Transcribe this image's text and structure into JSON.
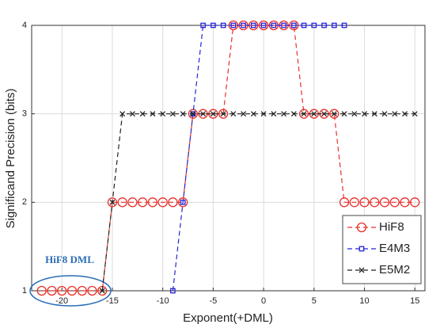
{
  "chart_data": {
    "type": "line",
    "x_label": "Exponent(+DML)",
    "y_label": "Significand Precision (bits)",
    "annotation": "HiF8 DML",
    "xlim": [
      -23,
      16
    ],
    "ylim": [
      1,
      4
    ],
    "xticks": [
      -20,
      -15,
      -10,
      -5,
      0,
      5,
      10,
      15
    ],
    "yticks": [
      1,
      2,
      3,
      4
    ],
    "grid": true,
    "legend": "lower right",
    "series": [
      {
        "name": "HiF8",
        "color": "#e8302a",
        "marker": "o",
        "x": [
          -22,
          -21,
          -20,
          -19,
          -18,
          -17,
          -16,
          -15,
          -14,
          -13,
          -12,
          -11,
          -10,
          -9,
          -8,
          -7,
          -6,
          -5,
          -4,
          -3,
          -2,
          -1,
          0,
          1,
          2,
          3,
          4,
          5,
          6,
          7,
          8,
          9,
          10,
          11,
          12,
          13,
          14,
          15
        ],
        "values": [
          1,
          1,
          1,
          1,
          1,
          1,
          1,
          2,
          2,
          2,
          2,
          2,
          2,
          2,
          2,
          3,
          3,
          3,
          3,
          4,
          4,
          4,
          4,
          4,
          4,
          4,
          3,
          3,
          3,
          3,
          2,
          2,
          2,
          2,
          2,
          2,
          2,
          2
        ]
      },
      {
        "name": "E4M3",
        "color": "#2424d6",
        "marker": "s",
        "x": [
          -9,
          -8,
          -7,
          -6,
          -5,
          -4,
          -3,
          -2,
          -1,
          0,
          1,
          2,
          3,
          4,
          5,
          6,
          7,
          8
        ],
        "values": [
          1,
          2,
          3,
          4,
          4,
          4,
          4,
          4,
          4,
          4,
          4,
          4,
          4,
          4,
          4,
          4,
          4,
          4
        ]
      },
      {
        "name": "E5M2",
        "color": "#222222",
        "marker": "x",
        "x": [
          -16,
          -15,
          -14,
          -13,
          -12,
          -11,
          -10,
          -9,
          -8,
          -7,
          -6,
          -5,
          -4,
          -3,
          -2,
          -1,
          0,
          1,
          2,
          3,
          4,
          5,
          6,
          7,
          8,
          9,
          10,
          11,
          12,
          13,
          14,
          15
        ],
        "values": [
          1,
          2,
          3,
          3,
          3,
          3,
          3,
          3,
          3,
          3,
          3,
          3,
          3,
          3,
          3,
          3,
          3,
          3,
          3,
          3,
          3,
          3,
          3,
          3,
          3,
          3,
          3,
          3,
          3,
          3,
          3,
          3
        ]
      }
    ]
  }
}
